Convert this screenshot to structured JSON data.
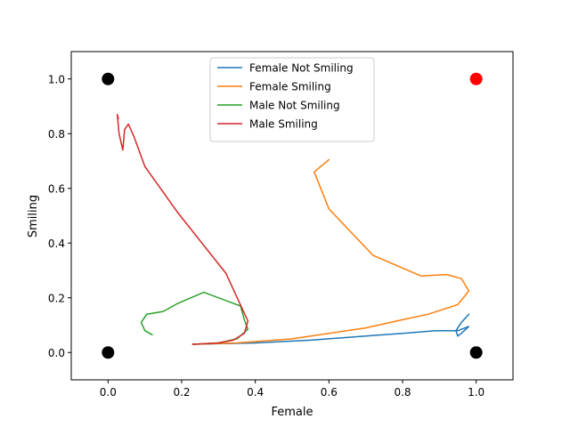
{
  "chart_data": {
    "type": "line",
    "title": "",
    "xlabel": "Female",
    "ylabel": "Smiling",
    "xlim": [
      -0.1,
      1.1
    ],
    "ylim": [
      -0.1,
      1.1
    ],
    "xticks": [
      0.0,
      0.2,
      0.4,
      0.6,
      0.8,
      1.0
    ],
    "xtick_labels": [
      "0.0",
      "0.2",
      "0.4",
      "0.6",
      "0.8",
      "1.0"
    ],
    "yticks": [
      0.0,
      0.2,
      0.4,
      0.6,
      0.8,
      1.0
    ],
    "ytick_labels": [
      "0.0",
      "0.2",
      "0.4",
      "0.6",
      "0.8",
      "1.0"
    ],
    "grid": false,
    "legend_position": "top-center",
    "series": [
      {
        "name": "Female Not Smiling",
        "color": "#1f77b4",
        "points": [
          [
            0.23,
            0.03
          ],
          [
            0.4,
            0.035
          ],
          [
            0.55,
            0.045
          ],
          [
            0.7,
            0.06
          ],
          [
            0.8,
            0.07
          ],
          [
            0.89,
            0.08
          ],
          [
            0.95,
            0.08
          ],
          [
            0.98,
            0.095
          ],
          [
            0.96,
            0.07
          ],
          [
            0.95,
            0.06
          ],
          [
            0.945,
            0.08
          ],
          [
            0.96,
            0.11
          ],
          [
            0.98,
            0.14
          ]
        ]
      },
      {
        "name": "Female Smiling",
        "color": "#ff7f0e",
        "points": [
          [
            0.23,
            0.03
          ],
          [
            0.35,
            0.035
          ],
          [
            0.5,
            0.05
          ],
          [
            0.6,
            0.07
          ],
          [
            0.7,
            0.09
          ],
          [
            0.8,
            0.12
          ],
          [
            0.87,
            0.14
          ],
          [
            0.95,
            0.175
          ],
          [
            0.98,
            0.225
          ],
          [
            0.96,
            0.27
          ],
          [
            0.92,
            0.285
          ],
          [
            0.85,
            0.28
          ],
          [
            0.72,
            0.355
          ],
          [
            0.6,
            0.525
          ],
          [
            0.56,
            0.66
          ],
          [
            0.6,
            0.705
          ]
        ]
      },
      {
        "name": "Male Not Smiling",
        "color": "#2ca02c",
        "points": [
          [
            0.23,
            0.03
          ],
          [
            0.3,
            0.035
          ],
          [
            0.35,
            0.05
          ],
          [
            0.38,
            0.085
          ],
          [
            0.37,
            0.12
          ],
          [
            0.36,
            0.17
          ],
          [
            0.26,
            0.22
          ],
          [
            0.19,
            0.18
          ],
          [
            0.15,
            0.15
          ],
          [
            0.105,
            0.14
          ],
          [
            0.095,
            0.12
          ],
          [
            0.09,
            0.11
          ],
          [
            0.1,
            0.08
          ],
          [
            0.12,
            0.065
          ]
        ]
      },
      {
        "name": "Male Smiling",
        "color": "#d62728",
        "points": [
          [
            0.23,
            0.03
          ],
          [
            0.3,
            0.035
          ],
          [
            0.34,
            0.045
          ],
          [
            0.37,
            0.07
          ],
          [
            0.38,
            0.115
          ],
          [
            0.32,
            0.29
          ],
          [
            0.19,
            0.51
          ],
          [
            0.1,
            0.68
          ],
          [
            0.07,
            0.79
          ],
          [
            0.055,
            0.835
          ],
          [
            0.045,
            0.815
          ],
          [
            0.04,
            0.74
          ],
          [
            0.03,
            0.8
          ],
          [
            0.025,
            0.87
          ],
          [
            0.028,
            0.855
          ]
        ]
      }
    ],
    "markers": [
      {
        "x": 0,
        "y": 0,
        "color": "#000000"
      },
      {
        "x": 0,
        "y": 1,
        "color": "#000000"
      },
      {
        "x": 1,
        "y": 0,
        "color": "#000000"
      },
      {
        "x": 1,
        "y": 1,
        "color": "#ff0000"
      }
    ]
  }
}
